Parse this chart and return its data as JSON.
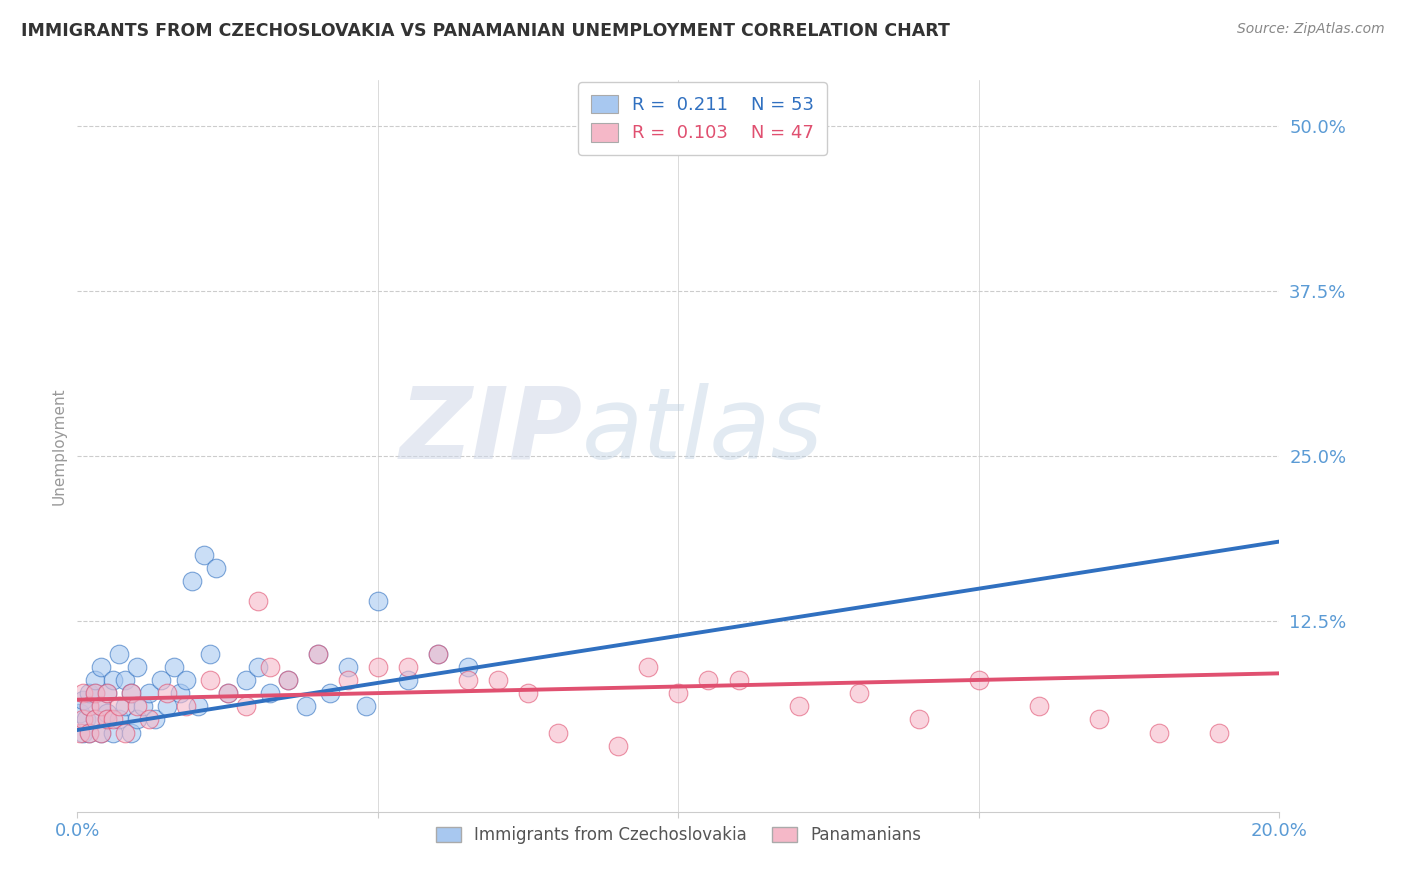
{
  "title": "IMMIGRANTS FROM CZECHOSLOVAKIA VS PANAMANIAN UNEMPLOYMENT CORRELATION CHART",
  "source": "Source: ZipAtlas.com",
  "ylabel": "Unemployment",
  "xlim": [
    0.0,
    0.2
  ],
  "ylim": [
    -0.02,
    0.535
  ],
  "blue_color": "#a8c8f0",
  "pink_color": "#f5b8c8",
  "blue_line_color": "#3070c0",
  "pink_line_color": "#e05070",
  "blue_label": "Immigrants from Czechoslovakia",
  "pink_label": "Panamanians",
  "blue_r": 0.211,
  "blue_n": 53,
  "pink_r": 0.103,
  "pink_n": 47,
  "blue_scatter_x": [
    0.0005,
    0.001,
    0.001,
    0.0015,
    0.002,
    0.002,
    0.002,
    0.003,
    0.003,
    0.003,
    0.004,
    0.004,
    0.004,
    0.005,
    0.005,
    0.005,
    0.006,
    0.006,
    0.007,
    0.007,
    0.008,
    0.008,
    0.009,
    0.009,
    0.01,
    0.01,
    0.011,
    0.012,
    0.013,
    0.014,
    0.015,
    0.016,
    0.017,
    0.018,
    0.02,
    0.022,
    0.025,
    0.028,
    0.03,
    0.032,
    0.035,
    0.038,
    0.04,
    0.042,
    0.045,
    0.048,
    0.05,
    0.055,
    0.06,
    0.065,
    0.021,
    0.023,
    0.019
  ],
  "blue_scatter_y": [
    0.055,
    0.04,
    0.065,
    0.05,
    0.04,
    0.06,
    0.07,
    0.05,
    0.07,
    0.08,
    0.04,
    0.06,
    0.09,
    0.05,
    0.07,
    0.055,
    0.04,
    0.08,
    0.05,
    0.1,
    0.06,
    0.08,
    0.04,
    0.07,
    0.05,
    0.09,
    0.06,
    0.07,
    0.05,
    0.08,
    0.06,
    0.09,
    0.07,
    0.08,
    0.06,
    0.1,
    0.07,
    0.08,
    0.09,
    0.07,
    0.08,
    0.06,
    0.1,
    0.07,
    0.09,
    0.06,
    0.14,
    0.08,
    0.1,
    0.09,
    0.175,
    0.165,
    0.155
  ],
  "pink_scatter_x": [
    0.0005,
    0.001,
    0.001,
    0.002,
    0.002,
    0.003,
    0.003,
    0.004,
    0.004,
    0.005,
    0.005,
    0.006,
    0.007,
    0.008,
    0.009,
    0.01,
    0.012,
    0.015,
    0.018,
    0.022,
    0.025,
    0.028,
    0.032,
    0.035,
    0.04,
    0.045,
    0.05,
    0.06,
    0.07,
    0.08,
    0.09,
    0.1,
    0.11,
    0.12,
    0.13,
    0.14,
    0.15,
    0.16,
    0.17,
    0.18,
    0.19,
    0.03,
    0.055,
    0.065,
    0.075,
    0.095,
    0.105
  ],
  "pink_scatter_y": [
    0.04,
    0.05,
    0.07,
    0.04,
    0.06,
    0.05,
    0.07,
    0.04,
    0.06,
    0.05,
    0.07,
    0.05,
    0.06,
    0.04,
    0.07,
    0.06,
    0.05,
    0.07,
    0.06,
    0.08,
    0.07,
    0.06,
    0.09,
    0.08,
    0.1,
    0.08,
    0.09,
    0.1,
    0.08,
    0.04,
    0.03,
    0.07,
    0.08,
    0.06,
    0.07,
    0.05,
    0.08,
    0.06,
    0.05,
    0.04,
    0.04,
    0.14,
    0.09,
    0.08,
    0.07,
    0.09,
    0.08
  ],
  "blue_line_x0": 0.0,
  "blue_line_y0": 0.042,
  "blue_line_x1": 0.2,
  "blue_line_y1": 0.185,
  "pink_line_x0": 0.0,
  "pink_line_y0": 0.065,
  "pink_line_x1": 0.2,
  "pink_line_y1": 0.085,
  "background_color": "#ffffff",
  "grid_color": "#cccccc",
  "title_color": "#333333",
  "tick_label_color": "#5b9bd5",
  "watermark_zip": "ZIP",
  "watermark_atlas": "atlas"
}
